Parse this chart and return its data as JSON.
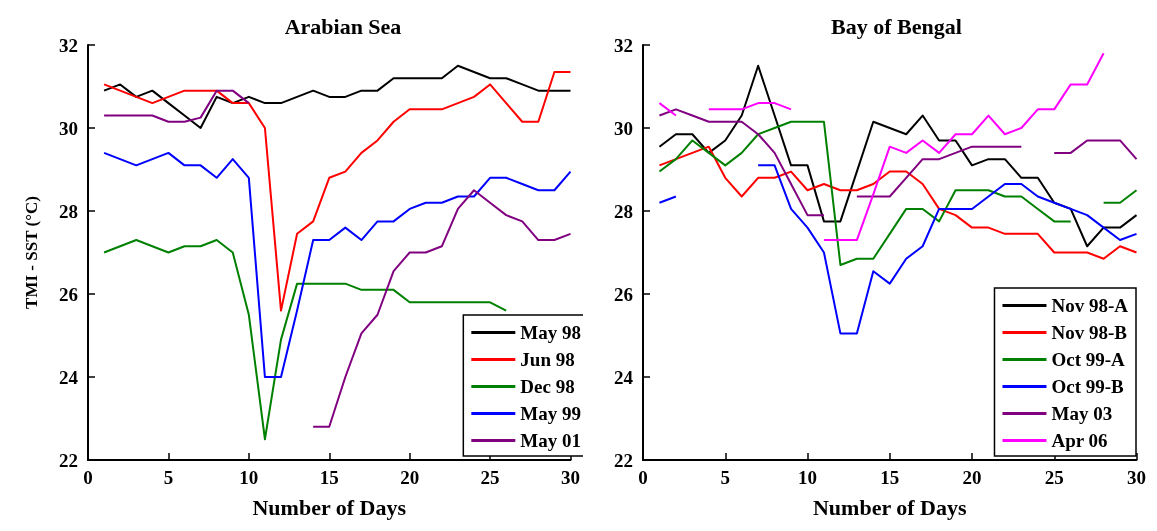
{
  "chart_data": [
    {
      "type": "line",
      "title": "Arabian Sea",
      "xlabel": "Number of Days",
      "ylabel": "TMI - SST (°C)",
      "x": [
        1,
        2,
        3,
        4,
        5,
        6,
        7,
        8,
        9,
        10,
        11,
        12,
        13,
        14,
        15,
        16,
        17,
        18,
        19,
        20,
        21,
        22,
        23,
        24,
        25,
        26,
        27,
        28,
        29,
        30
      ],
      "xlim": [
        0,
        30
      ],
      "xticks": [
        0,
        5,
        10,
        15,
        20,
        25,
        30
      ],
      "ylim": [
        22,
        32
      ],
      "yticks": [
        22,
        24,
        26,
        28,
        30,
        32
      ],
      "grid": false,
      "legend": "bottom right",
      "marker": "none",
      "line_style": "solid",
      "series": [
        {
          "name": "May 98",
          "color": "#000000",
          "values": [
            30.9,
            31.05,
            30.75,
            30.9,
            30.6,
            30.3,
            30.0,
            30.75,
            30.6,
            30.75,
            30.6,
            30.6,
            30.75,
            30.9,
            30.75,
            30.75,
            30.9,
            30.9,
            31.2,
            31.2,
            31.2,
            31.2,
            31.5,
            31.35,
            31.2,
            31.2,
            31.05,
            30.9,
            30.9,
            30.9
          ]
        },
        {
          "name": "Jun 98",
          "color": "#ff0000",
          "values": [
            31.05,
            30.9,
            30.75,
            30.6,
            30.75,
            30.9,
            30.9,
            30.9,
            30.6,
            30.6,
            30.0,
            25.6,
            27.45,
            27.75,
            28.8,
            28.95,
            29.4,
            29.7,
            30.15,
            30.45,
            30.45,
            30.45,
            30.6,
            30.75,
            31.05,
            30.6,
            30.15,
            30.15,
            31.35,
            31.35
          ]
        },
        {
          "name": "Dec 98",
          "color": "#008000",
          "values": [
            27.0,
            27.15,
            27.3,
            27.15,
            27.0,
            27.15,
            27.15,
            27.3,
            27.0,
            25.5,
            22.5,
            24.9,
            26.25,
            26.25,
            26.25,
            26.25,
            26.1,
            26.1,
            26.1,
            25.8,
            25.8,
            25.8,
            25.8,
            25.8,
            25.8,
            25.6,
            null,
            null,
            null,
            null
          ]
        },
        {
          "name": "May 99",
          "color": "#0000ff",
          "values": [
            29.4,
            29.25,
            29.1,
            29.25,
            29.4,
            29.1,
            29.1,
            28.8,
            29.25,
            28.8,
            24.0,
            24.0,
            25.6,
            27.3,
            27.3,
            27.6,
            27.3,
            27.75,
            27.75,
            28.05,
            28.2,
            28.2,
            28.35,
            28.35,
            28.8,
            28.8,
            28.65,
            28.5,
            28.5,
            28.95
          ]
        },
        {
          "name": "May 01",
          "color": "#800080",
          "values": [
            30.3,
            30.3,
            30.3,
            30.3,
            30.15,
            30.15,
            30.25,
            30.9,
            30.9,
            30.6,
            null,
            null,
            null,
            22.8,
            22.8,
            24.0,
            25.05,
            25.5,
            26.55,
            27.0,
            27.0,
            27.15,
            28.05,
            28.5,
            28.2,
            27.9,
            27.75,
            27.3,
            27.3,
            27.45
          ]
        }
      ]
    },
    {
      "type": "line",
      "title": "Bay of Bengal",
      "xlabel": "Number of Days",
      "x": [
        1,
        2,
        3,
        4,
        5,
        6,
        7,
        8,
        9,
        10,
        11,
        12,
        13,
        14,
        15,
        16,
        17,
        18,
        19,
        20,
        21,
        22,
        23,
        24,
        25,
        26,
        27,
        28,
        29,
        30
      ],
      "xlim": [
        0,
        30
      ],
      "xticks": [
        0,
        5,
        10,
        15,
        20,
        25,
        30
      ],
      "ylim": [
        22,
        32
      ],
      "yticks": [
        22,
        24,
        26,
        28,
        30,
        32
      ],
      "grid": false,
      "legend": "bottom right",
      "marker": "none",
      "line_style": "solid",
      "series": [
        {
          "name": "Nov 98-A",
          "color": "#000000",
          "values": [
            29.55,
            29.85,
            29.85,
            29.4,
            29.7,
            30.3,
            31.5,
            30.3,
            29.1,
            29.1,
            27.75,
            27.75,
            28.95,
            30.15,
            30.0,
            29.85,
            30.3,
            29.7,
            29.7,
            29.1,
            29.25,
            29.25,
            28.8,
            28.8,
            28.2,
            28.05,
            27.15,
            27.6,
            27.6,
            27.9
          ]
        },
        {
          "name": "Nov 98-B",
          "color": "#ff0000",
          "values": [
            29.1,
            29.25,
            29.4,
            29.55,
            28.8,
            28.35,
            28.8,
            28.8,
            28.95,
            28.5,
            28.65,
            28.5,
            28.5,
            28.65,
            28.95,
            28.95,
            28.65,
            28.05,
            27.9,
            27.6,
            27.6,
            27.45,
            27.45,
            27.45,
            27.0,
            27.0,
            27.0,
            26.85,
            27.15,
            27.0
          ]
        },
        {
          "name": "Oct 99-A",
          "color": "#008000",
          "values": [
            28.95,
            29.25,
            29.7,
            29.4,
            29.1,
            29.4,
            29.85,
            30.0,
            30.15,
            30.15,
            30.15,
            26.7,
            26.85,
            26.85,
            27.45,
            28.05,
            28.05,
            27.75,
            28.5,
            28.5,
            28.5,
            28.35,
            28.35,
            28.05,
            27.75,
            27.75,
            null,
            28.2,
            28.2,
            28.5
          ]
        },
        {
          "name": "Oct 99-B",
          "color": "#0000ff",
          "values": [
            28.2,
            28.35,
            null,
            null,
            null,
            null,
            29.1,
            29.1,
            28.05,
            27.6,
            27.0,
            25.05,
            25.05,
            26.55,
            26.25,
            26.85,
            27.15,
            28.05,
            28.05,
            28.05,
            28.35,
            28.65,
            28.65,
            28.35,
            28.2,
            28.05,
            27.9,
            27.6,
            27.3,
            27.45
          ]
        },
        {
          "name": "May 03",
          "color": "#800080",
          "values": [
            30.3,
            30.45,
            30.3,
            30.15,
            30.15,
            30.15,
            29.85,
            29.4,
            28.65,
            27.9,
            27.9,
            null,
            28.35,
            28.35,
            28.35,
            28.8,
            29.25,
            29.25,
            29.4,
            29.55,
            29.55,
            29.55,
            29.55,
            null,
            29.4,
            29.4,
            29.7,
            29.7,
            29.7,
            29.25
          ]
        },
        {
          "name": "Apr 06",
          "color": "#ff00ff",
          "values": [
            30.6,
            30.3,
            null,
            30.45,
            30.45,
            30.45,
            30.6,
            30.6,
            30.45,
            null,
            27.3,
            27.3,
            27.3,
            28.4,
            29.55,
            29.4,
            29.7,
            29.4,
            29.85,
            29.85,
            30.3,
            29.85,
            30.0,
            30.45,
            30.45,
            31.05,
            31.05,
            31.8,
            null,
            null
          ]
        }
      ]
    }
  ]
}
